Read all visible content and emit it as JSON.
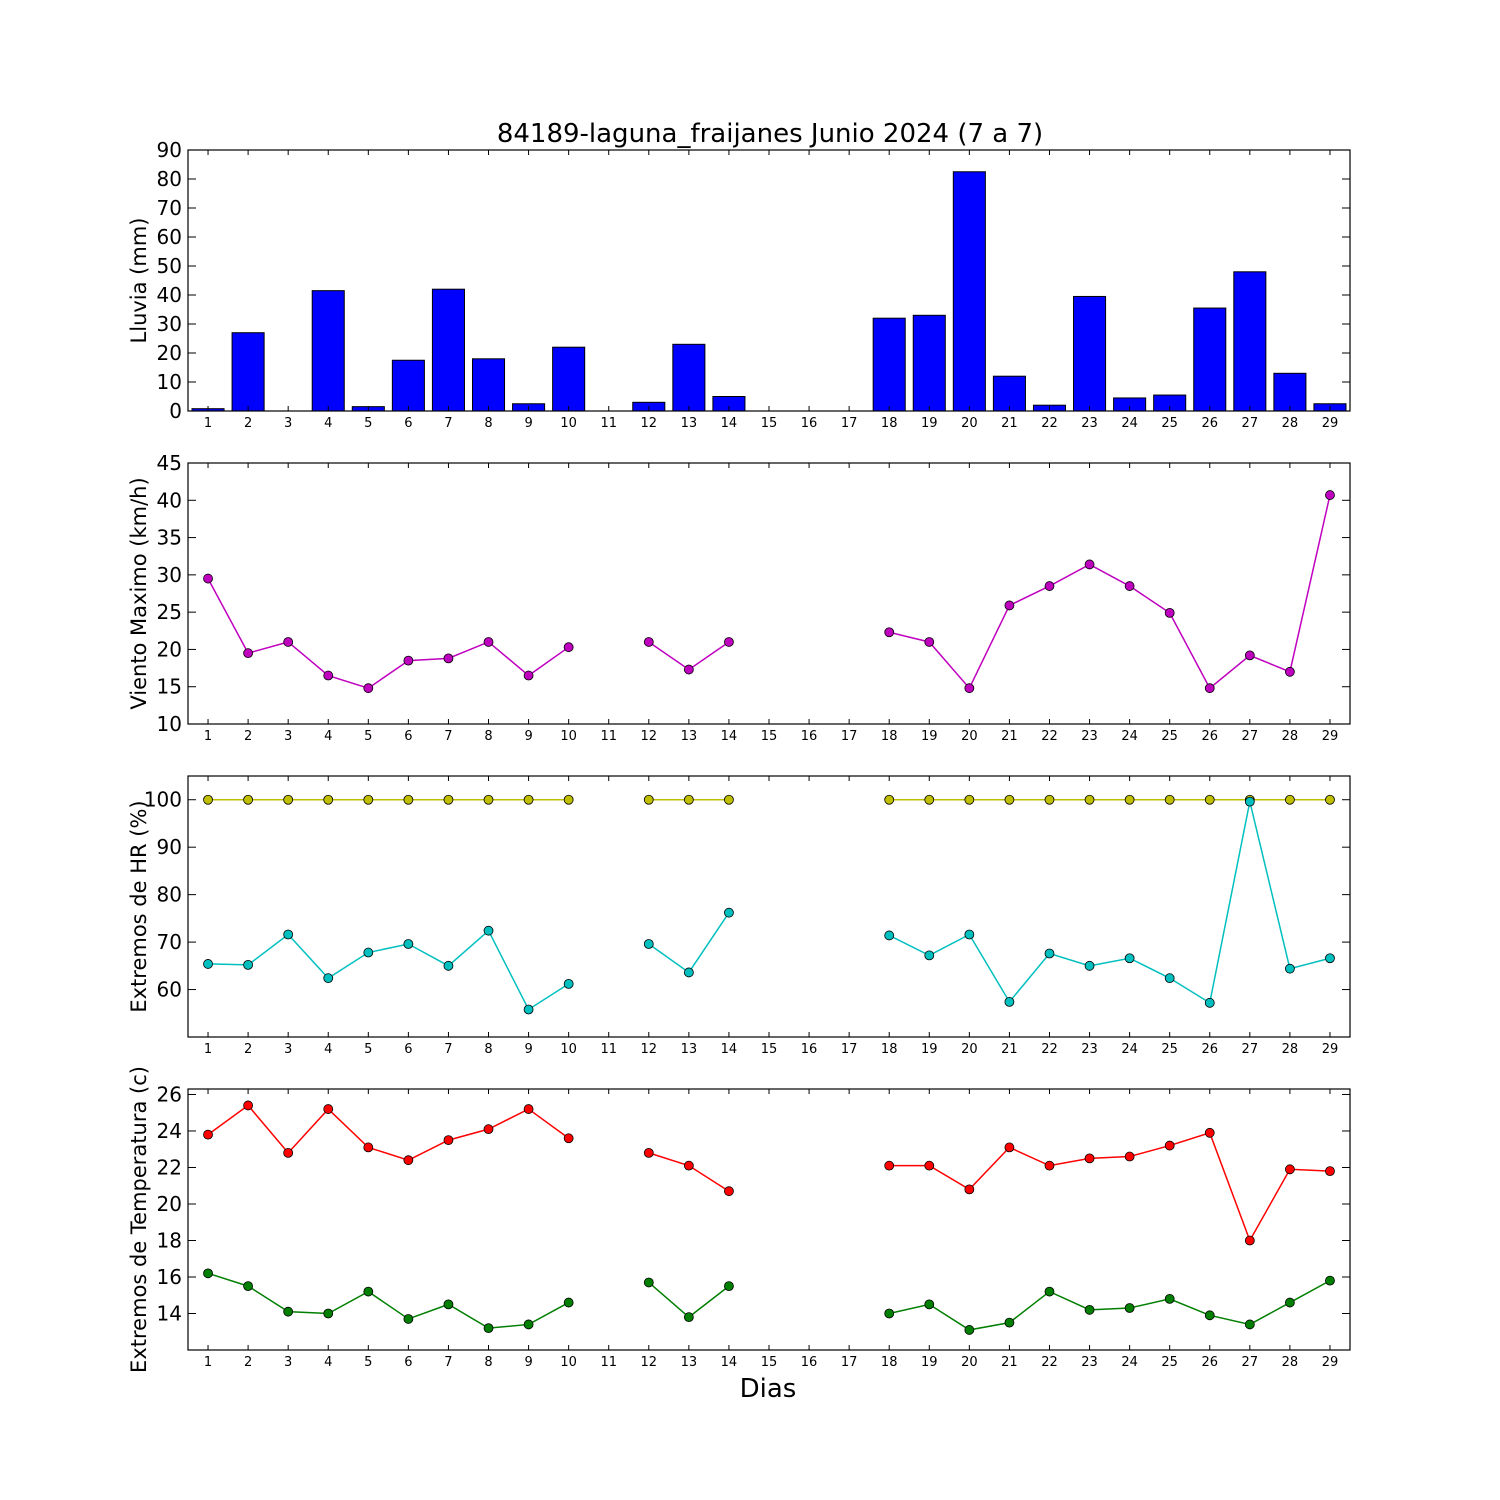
{
  "title": "84189-laguna_fraijanes Junio 2024  (7 a 7)",
  "xlabel": "Dias",
  "chart_data": [
    {
      "type": "bar",
      "ylabel": "Lluvia (mm)",
      "ylim": [
        0,
        90
      ],
      "yticks": [
        0,
        10,
        20,
        30,
        40,
        50,
        60,
        70,
        80,
        90
      ],
      "x": [
        1,
        2,
        3,
        4,
        5,
        6,
        7,
        8,
        9,
        10,
        11,
        12,
        13,
        14,
        15,
        16,
        17,
        18,
        19,
        20,
        21,
        22,
        23,
        24,
        25,
        26,
        27,
        28,
        29
      ],
      "values": [
        0.8,
        27,
        0,
        41.5,
        1.5,
        17.5,
        42,
        18,
        2.5,
        22,
        0,
        3,
        23,
        5,
        0,
        0,
        0,
        32,
        33,
        82.5,
        12,
        2,
        39.5,
        4.5,
        5.5,
        35.5,
        48,
        13,
        2.5
      ],
      "color": "#0000ff"
    },
    {
      "type": "line",
      "ylabel": "Viento Maximo (km/h)",
      "ylim": [
        10,
        45
      ],
      "yticks": [
        10,
        15,
        20,
        25,
        30,
        35,
        40,
        45
      ],
      "x": [
        1,
        2,
        3,
        4,
        5,
        6,
        7,
        8,
        9,
        10,
        11,
        12,
        13,
        14,
        15,
        16,
        17,
        18,
        19,
        20,
        21,
        22,
        23,
        24,
        25,
        26,
        27,
        28,
        29
      ],
      "series": [
        {
          "color": "#bf00bf",
          "values": [
            29.5,
            19.5,
            21,
            16.5,
            14.8,
            18.5,
            18.8,
            21,
            16.5,
            20.3,
            null,
            21,
            17.3,
            21,
            null,
            null,
            null,
            22.3,
            21,
            14.8,
            25.9,
            28.5,
            31.4,
            28.5,
            24.9,
            14.8,
            19.2,
            17,
            40.7
          ]
        }
      ]
    },
    {
      "type": "line",
      "ylabel": "Extremos de HR (%)",
      "ylim": [
        50,
        105
      ],
      "yticks": [
        60,
        70,
        80,
        90,
        100
      ],
      "x": [
        1,
        2,
        3,
        4,
        5,
        6,
        7,
        8,
        9,
        10,
        11,
        12,
        13,
        14,
        15,
        16,
        17,
        18,
        19,
        20,
        21,
        22,
        23,
        24,
        25,
        26,
        27,
        28,
        29
      ],
      "series": [
        {
          "color": "#bfbf00",
          "values": [
            100,
            100,
            100,
            100,
            100,
            100,
            100,
            100,
            100,
            100,
            null,
            100,
            100,
            100,
            null,
            null,
            null,
            100,
            100,
            100,
            100,
            100,
            100,
            100,
            100,
            100,
            100,
            100,
            100
          ]
        },
        {
          "color": "#00bfbf",
          "values": [
            65.4,
            65.2,
            71.6,
            62.4,
            67.8,
            69.6,
            65,
            72.4,
            55.8,
            61.2,
            null,
            69.6,
            63.6,
            76.2,
            null,
            null,
            null,
            71.4,
            67.2,
            71.6,
            57.4,
            67.6,
            65,
            66.6,
            62.4,
            57.2,
            99.6,
            64.4,
            66.6
          ]
        }
      ]
    },
    {
      "type": "line",
      "ylabel": "Extremos de Temperatura (c)",
      "ylim": [
        12,
        26.3
      ],
      "yticks": [
        14,
        16,
        18,
        20,
        22,
        24,
        26
      ],
      "x": [
        1,
        2,
        3,
        4,
        5,
        6,
        7,
        8,
        9,
        10,
        11,
        12,
        13,
        14,
        15,
        16,
        17,
        18,
        19,
        20,
        21,
        22,
        23,
        24,
        25,
        26,
        27,
        28,
        29
      ],
      "series": [
        {
          "color": "#ff0000",
          "values": [
            23.8,
            25.4,
            22.8,
            25.2,
            23.1,
            22.4,
            23.5,
            24.1,
            25.2,
            23.6,
            null,
            22.8,
            22.1,
            20.7,
            null,
            null,
            null,
            22.1,
            22.1,
            20.8,
            23.1,
            22.1,
            22.5,
            22.6,
            23.2,
            23.9,
            18,
            21.9,
            21.8
          ]
        },
        {
          "color": "#007f00",
          "values": [
            16.2,
            15.5,
            14.1,
            14,
            15.2,
            13.7,
            14.5,
            13.2,
            13.4,
            14.6,
            null,
            15.7,
            13.8,
            15.5,
            null,
            null,
            null,
            14,
            14.5,
            13.1,
            13.5,
            15.2,
            14.2,
            14.3,
            14.8,
            13.9,
            13.4,
            14.6,
            15.8
          ]
        }
      ]
    }
  ]
}
